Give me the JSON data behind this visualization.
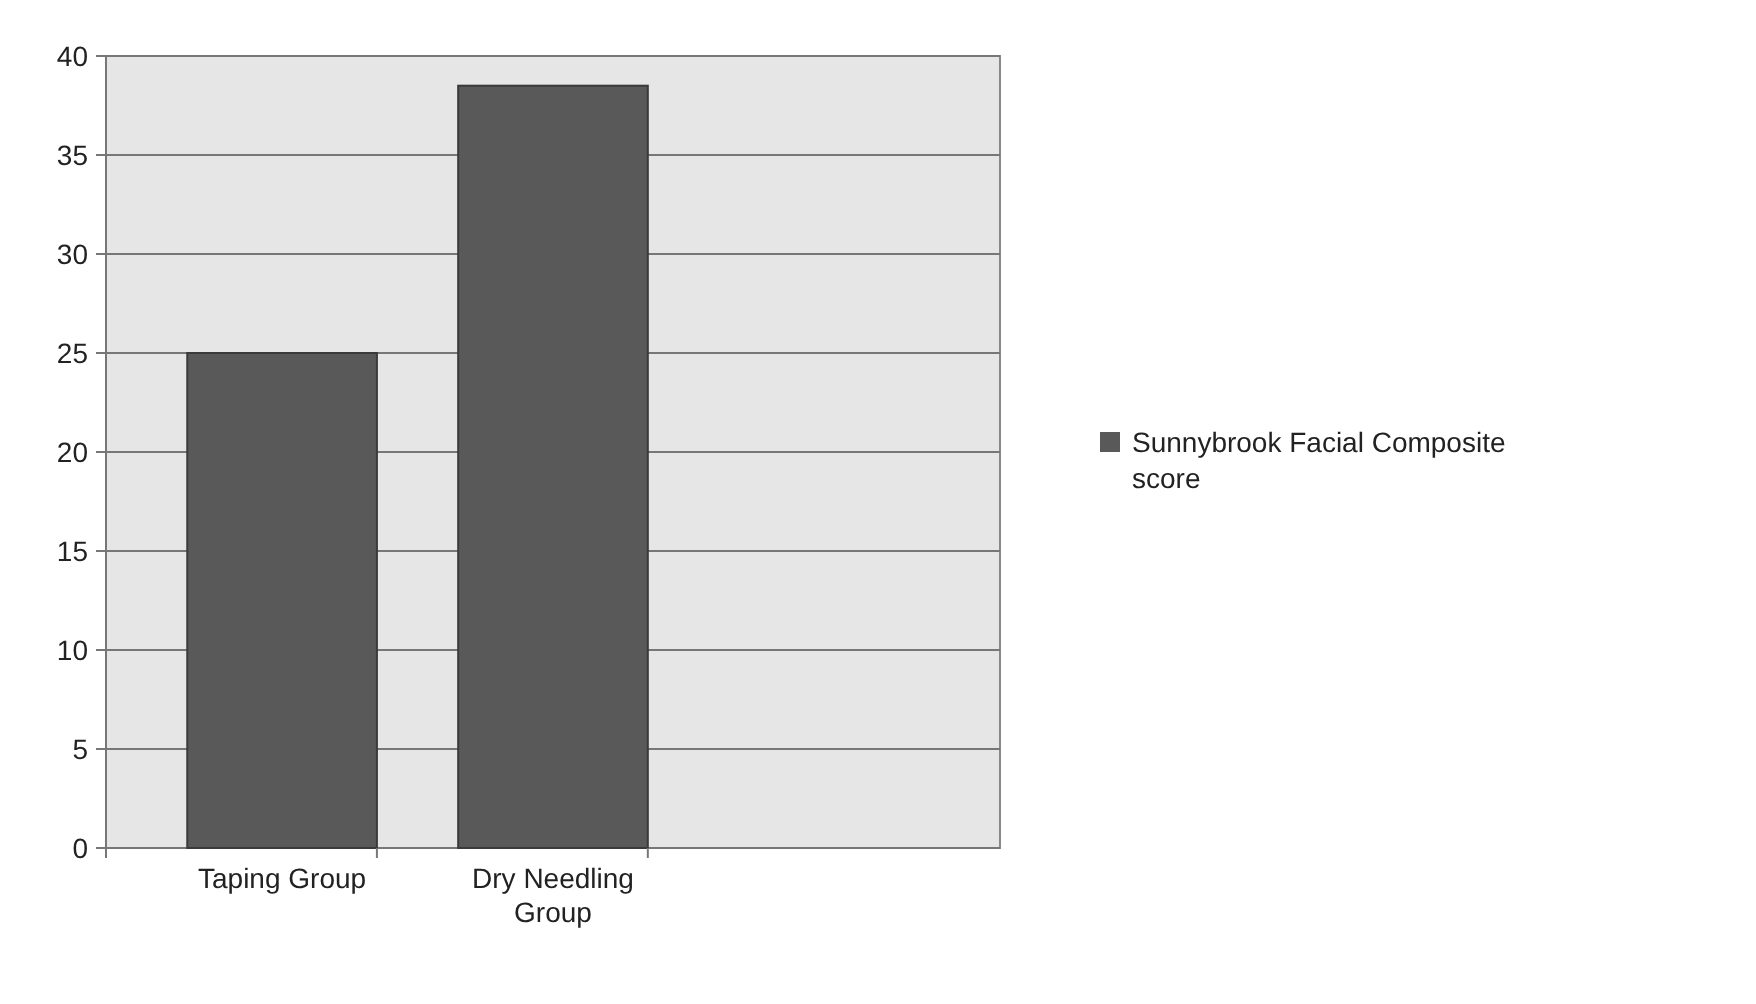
{
  "chart_data": {
    "type": "bar",
    "categories": [
      "Taping Group",
      "Dry Needling Group",
      null
    ],
    "series": [
      {
        "name": "Sunnybrook Facial Composite score",
        "color": "#595959",
        "values": [
          25,
          38.5,
          null
        ]
      }
    ],
    "ylim": [
      0,
      40
    ],
    "yticks": [
      0,
      5,
      10,
      15,
      20,
      25,
      30,
      35,
      40
    ],
    "grid": "y",
    "legend": "right"
  }
}
